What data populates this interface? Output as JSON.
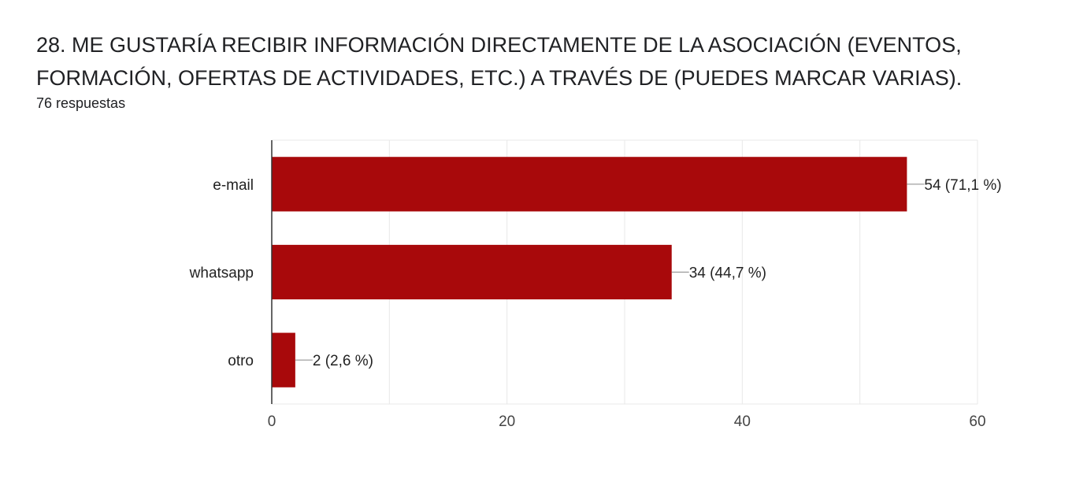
{
  "header": {
    "title": "28. ME GUSTARÍA RECIBIR INFORMACIÓN DIRECTAMENTE DE LA ASOCIACIÓN (EVENTOS, FORMACIÓN, OFERTAS DE ACTIVIDADES, ETC.) A TRAVÉS DE (PUEDES MARCAR VARIAS).",
    "responses": "76 respuestas"
  },
  "chart_data": {
    "type": "bar",
    "orientation": "horizontal",
    "categories": [
      "e-mail",
      "whatsapp",
      "otro"
    ],
    "values": [
      54,
      34,
      2
    ],
    "data_labels": [
      "54 (71,1 %)",
      "34 (44,7 %)",
      "2 (2,6 %)"
    ],
    "xlim": [
      0,
      60
    ],
    "xticks": [
      0,
      20,
      40,
      60
    ],
    "xtick_labels": [
      "0",
      "20",
      "40",
      "60"
    ],
    "grid": true,
    "bar_color": "#a8090b",
    "grid_color": "#e8e8e8",
    "axis_color": "#333333"
  }
}
